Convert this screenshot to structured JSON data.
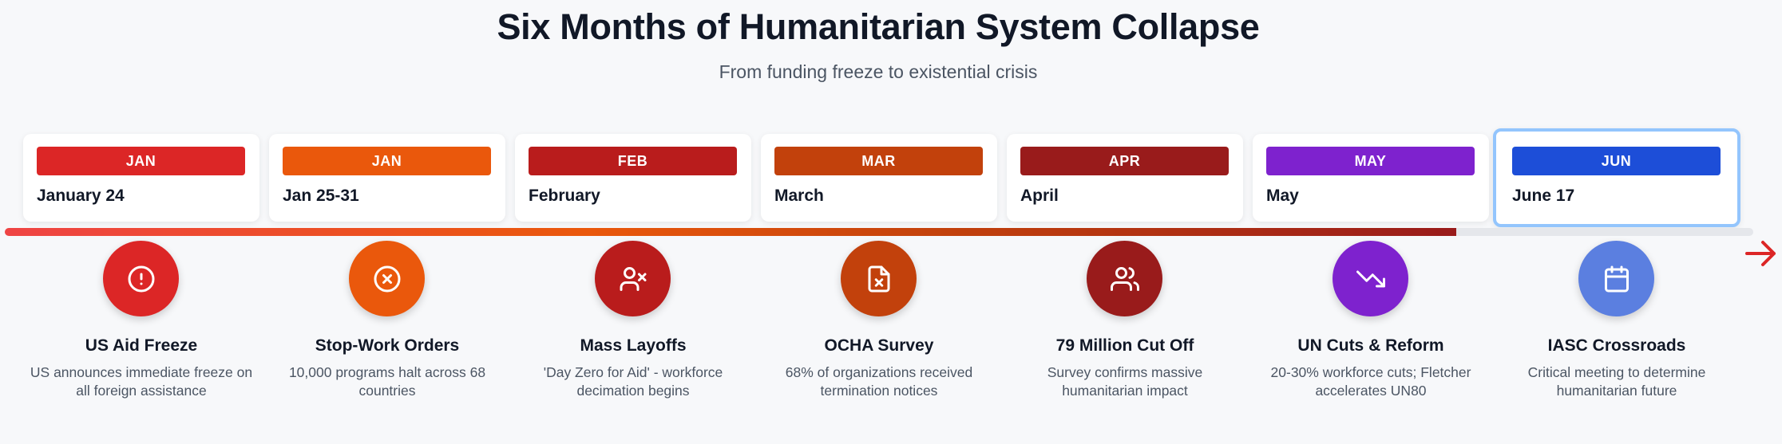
{
  "title": "Six Months of Humanitarian System Collapse",
  "subtitle": "From funding freeze to existential crisis",
  "events": [
    {
      "month": "JAN",
      "date": "January 24",
      "title": "US Aid Freeze",
      "desc": "US announces immediate freeze on all foreign assistance",
      "color": "#dc2626",
      "icon": "alert-circle-icon"
    },
    {
      "month": "JAN",
      "date": "Jan 25-31",
      "title": "Stop-Work Orders",
      "desc": "10,000 programs halt across 68 countries",
      "color": "#ea580c",
      "icon": "x-circle-icon"
    },
    {
      "month": "FEB",
      "date": "February",
      "title": "Mass Layoffs",
      "desc": "'Day Zero for Aid' - workforce decimation begins",
      "color": "#b91c1c",
      "icon": "user-x-icon"
    },
    {
      "month": "MAR",
      "date": "March",
      "title": "OCHA Survey",
      "desc": "68% of organizations received termination notices",
      "color": "#c2410c",
      "icon": "file-x-icon"
    },
    {
      "month": "APR",
      "date": "April",
      "title": "79 Million Cut Off",
      "desc": "Survey confirms massive humanitarian impact",
      "color": "#991b1b",
      "icon": "users-icon"
    },
    {
      "month": "MAY",
      "date": "May",
      "title": "UN Cuts & Reform",
      "desc": "20-30% workforce cuts; Fletcher accelerates UN80",
      "color": "#7e22ce",
      "icon": "trending-down-icon"
    },
    {
      "month": "JUN",
      "date": "June 17",
      "title": "IASC Crossroads",
      "desc": "Critical meeting to determine humanitarian future",
      "color": "#1d4ed8",
      "circle_color": "#5b7fe0",
      "icon": "calendar-icon"
    }
  ],
  "progress_fraction": 0.83
}
